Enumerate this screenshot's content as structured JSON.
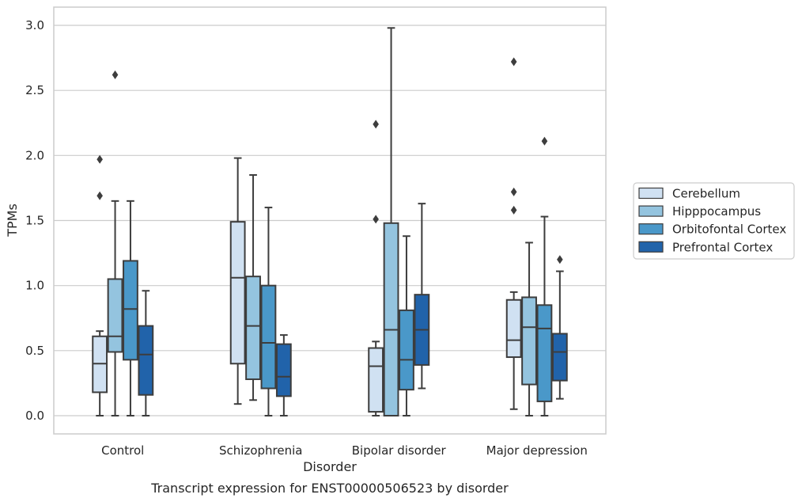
{
  "chart_data": {
    "type": "box",
    "title": "",
    "caption": "Transcript expression for ENST00000506523 by disorder",
    "xlabel": "Disorder",
    "ylabel": "TPMs",
    "ylim": [
      -0.14,
      3.14
    ],
    "yticks": [
      "0.0",
      "0.5",
      "1.0",
      "1.5",
      "2.0",
      "2.5",
      "3.0"
    ],
    "grid": "horizontal",
    "legend_position": "right",
    "categories": [
      "Control",
      "Schizophrenia",
      "Bipolar disorder",
      "Major depression"
    ],
    "series": [
      {
        "name": "Cerebellum",
        "color": "#d0e1f2",
        "boxes": [
          {
            "whisker_low": 0.0,
            "q1": 0.18,
            "median": 0.4,
            "q3": 0.61,
            "whisker_high": 0.65,
            "outliers": [
              1.69,
              1.97
            ]
          },
          {
            "whisker_low": 0.09,
            "q1": 0.4,
            "median": 1.06,
            "q3": 1.49,
            "whisker_high": 1.98,
            "outliers": []
          },
          {
            "whisker_low": 0.0,
            "q1": 0.03,
            "median": 0.38,
            "q3": 0.52,
            "whisker_high": 0.57,
            "outliers": [
              1.51,
              2.24
            ]
          },
          {
            "whisker_low": 0.05,
            "q1": 0.45,
            "median": 0.58,
            "q3": 0.89,
            "whisker_high": 0.95,
            "outliers": [
              1.58,
              1.72,
              2.72
            ]
          }
        ]
      },
      {
        "name": "Hipppocampus",
        "color": "#94c4df",
        "boxes": [
          {
            "whisker_low": 0.0,
            "q1": 0.49,
            "median": 0.61,
            "q3": 1.05,
            "whisker_high": 1.65,
            "outliers": [
              2.62
            ]
          },
          {
            "whisker_low": 0.12,
            "q1": 0.28,
            "median": 0.69,
            "q3": 1.07,
            "whisker_high": 1.85,
            "outliers": []
          },
          {
            "whisker_low": 0.0,
            "q1": 0.0,
            "median": 0.66,
            "q3": 1.48,
            "whisker_high": 2.98,
            "outliers": []
          },
          {
            "whisker_low": 0.0,
            "q1": 0.24,
            "median": 0.68,
            "q3": 0.91,
            "whisker_high": 1.33,
            "outliers": []
          }
        ]
      },
      {
        "name": "Orbitofontal Cortex",
        "color": "#4a98c9",
        "boxes": [
          {
            "whisker_low": 0.0,
            "q1": 0.43,
            "median": 0.82,
            "q3": 1.19,
            "whisker_high": 1.65,
            "outliers": []
          },
          {
            "whisker_low": 0.0,
            "q1": 0.21,
            "median": 0.56,
            "q3": 1.0,
            "whisker_high": 1.6,
            "outliers": []
          },
          {
            "whisker_low": 0.0,
            "q1": 0.2,
            "median": 0.43,
            "q3": 0.81,
            "whisker_high": 1.38,
            "outliers": []
          },
          {
            "whisker_low": 0.0,
            "q1": 0.11,
            "median": 0.67,
            "q3": 0.85,
            "whisker_high": 1.53,
            "outliers": [
              2.11
            ]
          }
        ]
      },
      {
        "name": "Prefrontal Cortex",
        "color": "#2163aa",
        "boxes": [
          {
            "whisker_low": 0.0,
            "q1": 0.16,
            "median": 0.47,
            "q3": 0.69,
            "whisker_high": 0.96,
            "outliers": []
          },
          {
            "whisker_low": 0.0,
            "q1": 0.15,
            "median": 0.3,
            "q3": 0.55,
            "whisker_high": 0.62,
            "outliers": []
          },
          {
            "whisker_low": 0.21,
            "q1": 0.39,
            "median": 0.66,
            "q3": 0.93,
            "whisker_high": 1.63,
            "outliers": []
          },
          {
            "whisker_low": 0.13,
            "q1": 0.27,
            "median": 0.49,
            "q3": 0.63,
            "whisker_high": 1.11,
            "outliers": [
              1.2
            ]
          }
        ]
      }
    ]
  }
}
